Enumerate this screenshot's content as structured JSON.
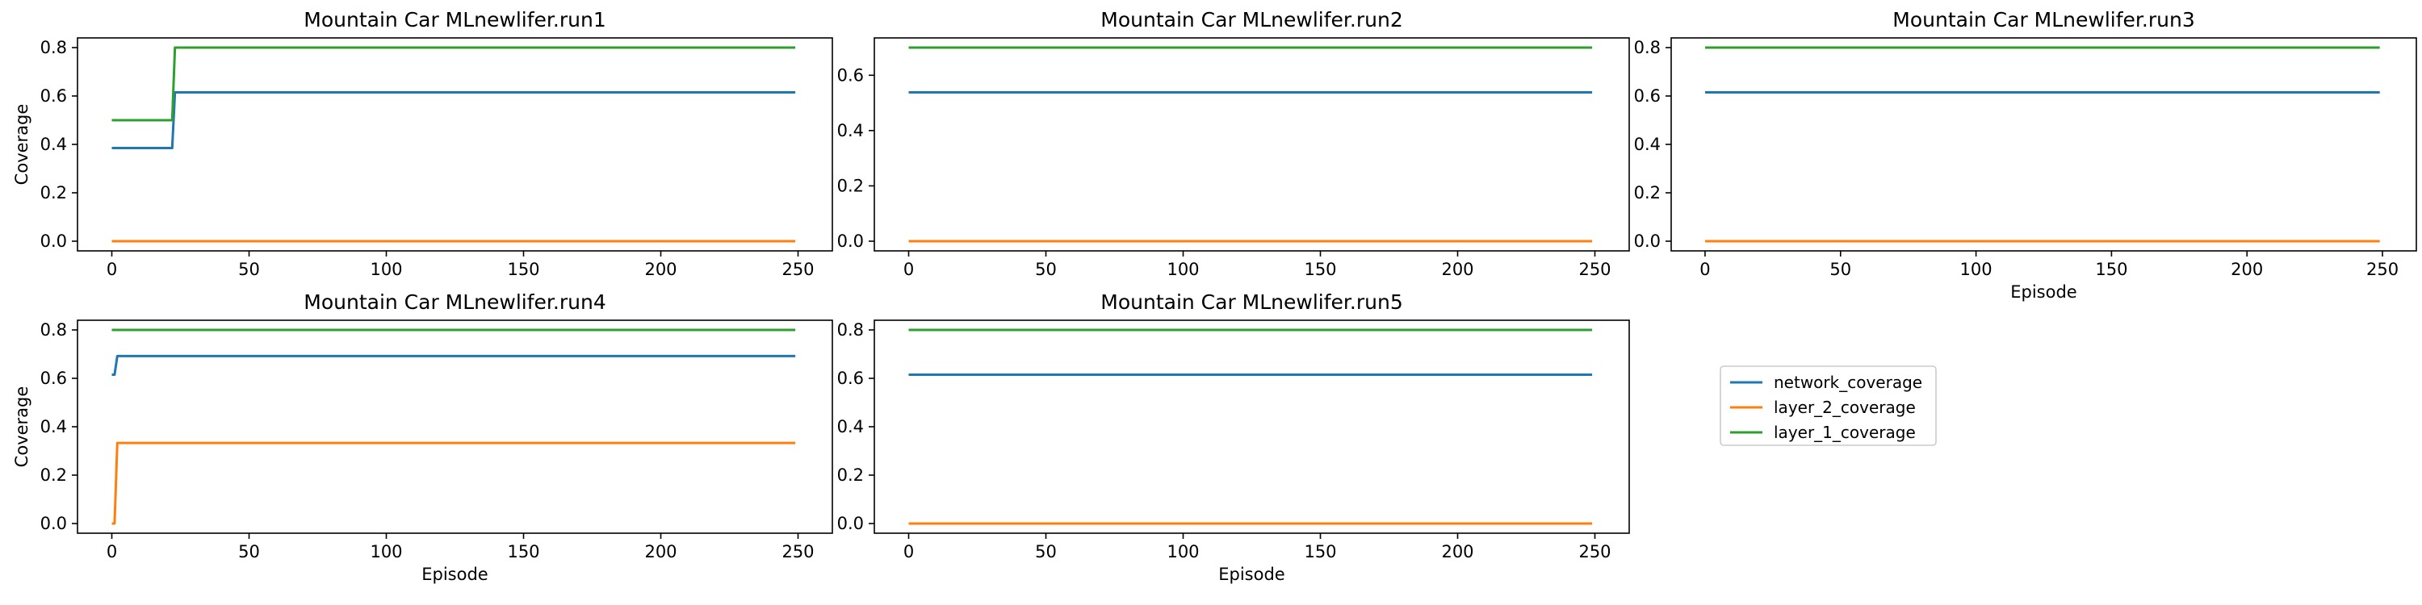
{
  "chart_data": [
    {
      "type": "line",
      "title": "Mountain Car MLnewlifer.run1",
      "xlabel": "",
      "ylabel": "Coverage",
      "xlim": [
        -12.5,
        262.5
      ],
      "ylim": [
        -0.04,
        0.84
      ],
      "xticks": [
        0,
        50,
        100,
        150,
        200,
        250
      ],
      "yticks": [
        0.0,
        0.2,
        0.4,
        0.6,
        0.8
      ],
      "series": [
        {
          "name": "network_coverage",
          "color": "#1f77b4",
          "points": [
            [
              0,
              0.385
            ],
            [
              22,
              0.385
            ],
            [
              23,
              0.615
            ],
            [
              249,
              0.615
            ]
          ]
        },
        {
          "name": "layer_2_coverage",
          "color": "#ff7f0e",
          "points": [
            [
              0,
              0.0
            ],
            [
              249,
              0.0
            ]
          ]
        },
        {
          "name": "layer_1_coverage",
          "color": "#2ca02c",
          "points": [
            [
              0,
              0.5
            ],
            [
              22,
              0.5
            ],
            [
              23,
              0.8
            ],
            [
              249,
              0.8
            ]
          ]
        }
      ]
    },
    {
      "type": "line",
      "title": "Mountain Car MLnewlifer.run2",
      "xlabel": "",
      "ylabel": "",
      "xlim": [
        -12.5,
        262.5
      ],
      "ylim": [
        -0.035,
        0.735
      ],
      "xticks": [
        0,
        50,
        100,
        150,
        200,
        250
      ],
      "yticks": [
        0.0,
        0.2,
        0.4,
        0.6
      ],
      "series": [
        {
          "name": "network_coverage",
          "color": "#1f77b4",
          "points": [
            [
              0,
              0.538
            ],
            [
              249,
              0.538
            ]
          ]
        },
        {
          "name": "layer_2_coverage",
          "color": "#ff7f0e",
          "points": [
            [
              0,
              0.0
            ],
            [
              249,
              0.0
            ]
          ]
        },
        {
          "name": "layer_1_coverage",
          "color": "#2ca02c",
          "points": [
            [
              0,
              0.7
            ],
            [
              249,
              0.7
            ]
          ]
        }
      ]
    },
    {
      "type": "line",
      "title": "Mountain Car MLnewlifer.run3",
      "xlabel": "Episode",
      "ylabel": "",
      "xlim": [
        -12.5,
        262.5
      ],
      "ylim": [
        -0.04,
        0.84
      ],
      "xticks": [
        0,
        50,
        100,
        150,
        200,
        250
      ],
      "yticks": [
        0.0,
        0.2,
        0.4,
        0.6,
        0.8
      ],
      "series": [
        {
          "name": "network_coverage",
          "color": "#1f77b4",
          "points": [
            [
              0,
              0.615
            ],
            [
              249,
              0.615
            ]
          ]
        },
        {
          "name": "layer_2_coverage",
          "color": "#ff7f0e",
          "points": [
            [
              0,
              0.0
            ],
            [
              249,
              0.0
            ]
          ]
        },
        {
          "name": "layer_1_coverage",
          "color": "#2ca02c",
          "points": [
            [
              0,
              0.8
            ],
            [
              249,
              0.8
            ]
          ]
        }
      ]
    },
    {
      "type": "line",
      "title": "Mountain Car MLnewlifer.run4",
      "xlabel": "Episode",
      "ylabel": "Coverage",
      "xlim": [
        -12.5,
        262.5
      ],
      "ylim": [
        -0.04,
        0.84
      ],
      "xticks": [
        0,
        50,
        100,
        150,
        200,
        250
      ],
      "yticks": [
        0.0,
        0.2,
        0.4,
        0.6,
        0.8
      ],
      "series": [
        {
          "name": "network_coverage",
          "color": "#1f77b4",
          "points": [
            [
              0,
              0.615
            ],
            [
              1,
              0.615
            ],
            [
              2,
              0.692
            ],
            [
              249,
              0.692
            ]
          ]
        },
        {
          "name": "layer_2_coverage",
          "color": "#ff7f0e",
          "points": [
            [
              0,
              0.0
            ],
            [
              1,
              0.0
            ],
            [
              2,
              0.333
            ],
            [
              249,
              0.333
            ]
          ]
        },
        {
          "name": "layer_1_coverage",
          "color": "#2ca02c",
          "points": [
            [
              0,
              0.8
            ],
            [
              249,
              0.8
            ]
          ]
        }
      ]
    },
    {
      "type": "line",
      "title": "Mountain Car MLnewlifer.run5",
      "xlabel": "Episode",
      "ylabel": "",
      "xlim": [
        -12.5,
        262.5
      ],
      "ylim": [
        -0.04,
        0.84
      ],
      "xticks": [
        0,
        50,
        100,
        150,
        200,
        250
      ],
      "yticks": [
        0.0,
        0.2,
        0.4,
        0.6,
        0.8
      ],
      "series": [
        {
          "name": "network_coverage",
          "color": "#1f77b4",
          "points": [
            [
              0,
              0.615
            ],
            [
              249,
              0.615
            ]
          ]
        },
        {
          "name": "layer_2_coverage",
          "color": "#ff7f0e",
          "points": [
            [
              0,
              0.0
            ],
            [
              249,
              0.0
            ]
          ]
        },
        {
          "name": "layer_1_coverage",
          "color": "#2ca02c",
          "points": [
            [
              0,
              0.8
            ],
            [
              249,
              0.8
            ]
          ]
        }
      ]
    }
  ],
  "legend": {
    "placement": "right, below third panel",
    "entries": [
      {
        "label": "network_coverage",
        "color": "#1f77b4"
      },
      {
        "label": "layer_2_coverage",
        "color": "#ff7f0e"
      },
      {
        "label": "layer_1_coverage",
        "color": "#2ca02c"
      }
    ]
  }
}
